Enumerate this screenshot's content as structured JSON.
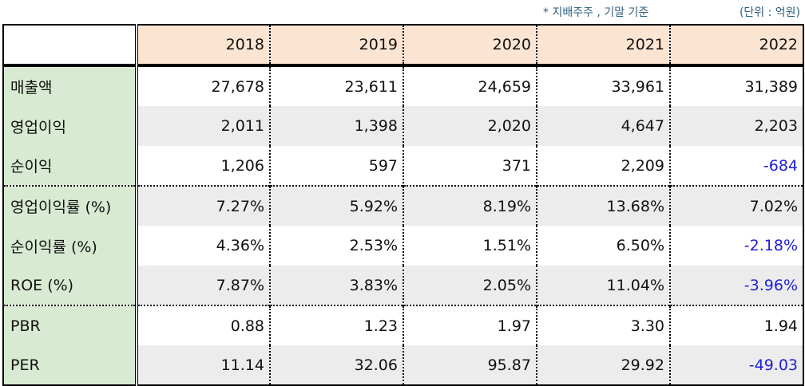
{
  "notes": {
    "basis": "* 지배주주 , 기말 기준",
    "unit": "(단위 : 억원)"
  },
  "table": {
    "columns": [
      "2018",
      "2019",
      "2020",
      "2021",
      "2022"
    ],
    "rows": [
      {
        "label": "매출액",
        "values": [
          "27,678",
          "23,611",
          "24,659",
          "33,961",
          "31,389"
        ]
      },
      {
        "label": "영업이익",
        "values": [
          "2,011",
          "1,398",
          "2,020",
          "4,647",
          "2,203"
        ]
      },
      {
        "label": "순이익",
        "values": [
          "1,206",
          "597",
          "371",
          "2,209",
          "-684"
        ]
      },
      {
        "label": "영업이익률 (%)",
        "values": [
          "7.27%",
          "5.92%",
          "8.19%",
          "13.68%",
          "7.02%"
        ]
      },
      {
        "label": "순이익률 (%)",
        "values": [
          "4.36%",
          "2.53%",
          "1.51%",
          "6.50%",
          "-2.18%"
        ]
      },
      {
        "label": "ROE (%)",
        "values": [
          "7.87%",
          "3.83%",
          "2.05%",
          "11.04%",
          "-3.96%"
        ]
      },
      {
        "label": "PBR",
        "values": [
          "0.88",
          "1.23",
          "1.97",
          "3.30",
          "1.94"
        ]
      },
      {
        "label": "PER",
        "values": [
          "11.14",
          "32.06",
          "95.87",
          "29.92",
          "-49.03"
        ]
      }
    ]
  },
  "colors": {
    "header_bg": "#fce4d2",
    "label_bg": "#d9ead3",
    "stripe_bg": "#ececec",
    "negative": "#1f1fd8",
    "note": "#2e5e7c"
  }
}
